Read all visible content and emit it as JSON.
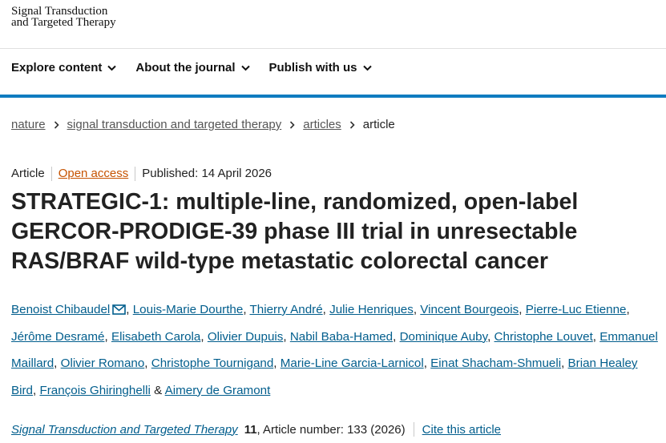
{
  "header": {
    "logo_lines": [
      "Signal Transduction",
      "and Targeted Therapy"
    ]
  },
  "nav": [
    "Explore content",
    "About the journal",
    "Publish with us"
  ],
  "breadcrumbs": [
    "nature",
    "signal transduction and targeted therapy",
    "articles",
    "article"
  ],
  "article": {
    "type": "Article",
    "access": "Open access",
    "published": "Published: 14 April 2026",
    "title_lines": [
      "STRATEGIC-1: multiple-line, randomized, open-label",
      "GERCOR-PRODIGE-39 phase III trial in unresectable",
      "RAS/BRAF wild-type metastatic colorectal cancer"
    ]
  },
  "authors": {
    "names": [
      "Benoist Chibaudel",
      "Louis-Marie Dourthe",
      "Thierry André",
      "Julie Henriques",
      "Vincent Bourgeois",
      "Pierre-Luc Etienne",
      "Jérôme Desramé",
      "Elisabeth Carola",
      "Olivier Dupuis",
      "Nabil Baba-Hamed",
      "Dominique Auby",
      "Christophe Louvet",
      "Emmanuel Maillard",
      "Olivier Romano",
      "Christophe Tournigand",
      "Marie-Line Garcia-Larnicol",
      "Einat Shacham-Shmueli",
      "Brian Healey Bird",
      "François Ghiringhelli",
      "Aimery de Gramont"
    ],
    "separator": ", ",
    "last_separator": " & "
  },
  "citation": {
    "journal": "Signal Transduction and Targeted Therapy",
    "volume": "11",
    "details": ", Article number: 133 (2026)",
    "cite_link": "Cite this article"
  }
}
